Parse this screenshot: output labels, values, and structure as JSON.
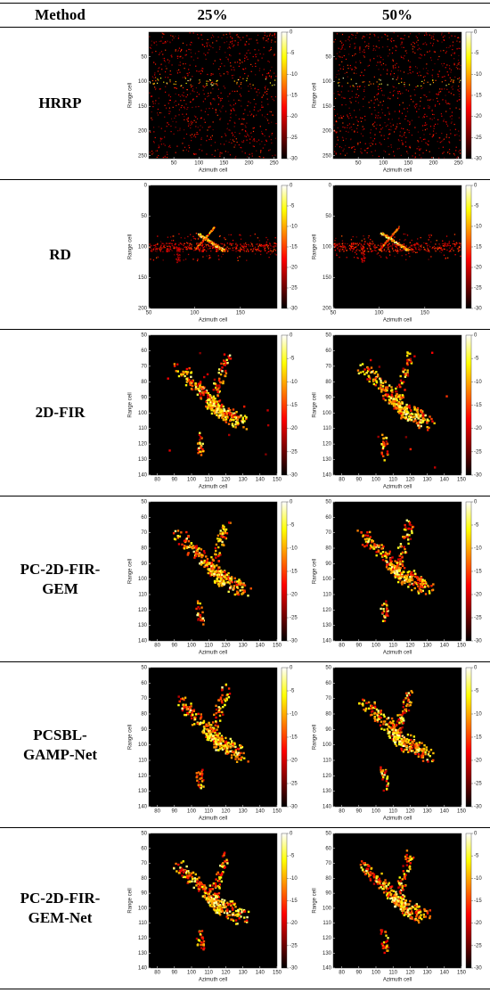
{
  "table": {
    "header": [
      "Method",
      "25%",
      "50%"
    ],
    "rows": [
      {
        "method": "HRRP",
        "panels": [
          {
            "xlabel": "Azimuth cell",
            "ylabel": "Range cell",
            "xlim": [
              0,
              256
            ],
            "ylim": [
              0,
              256
            ],
            "xticks": [
              50,
              100,
              150,
              200,
              250
            ],
            "yticks": [
              50,
              100,
              150,
              200,
              250
            ],
            "clim": [
              -30,
              0
            ],
            "cticks": [
              0,
              -5,
              -10,
              -15,
              -20,
              -25,
              -30
            ]
          },
          {
            "xlabel": "Azimuth cell",
            "ylabel": "Range cell",
            "xlim": [
              0,
              256
            ],
            "ylim": [
              0,
              256
            ],
            "xticks": [
              50,
              100,
              150,
              200,
              250
            ],
            "yticks": [
              50,
              100,
              150,
              200,
              250
            ],
            "clim": [
              -30,
              0
            ],
            "cticks": [
              0,
              -5,
              -10,
              -15,
              -20,
              -25,
              -30
            ]
          }
        ]
      },
      {
        "method": "RD",
        "panels": [
          {
            "xlabel": "Azimuth cell",
            "ylabel": "Range cell",
            "xlim": [
              50,
              190
            ],
            "ylim": [
              0,
              200
            ],
            "xticks": [
              50,
              100,
              150
            ],
            "yticks": [
              0,
              50,
              100,
              150,
              200
            ],
            "clim": [
              -30,
              0
            ],
            "cticks": [
              0,
              -5,
              -10,
              -15,
              -20,
              -25,
              -30
            ]
          },
          {
            "xlabel": "Azimuth cell",
            "ylabel": "Range cell",
            "xlim": [
              50,
              190
            ],
            "ylim": [
              0,
              200
            ],
            "xticks": [
              50,
              100,
              150
            ],
            "yticks": [
              0,
              50,
              100,
              150,
              200
            ],
            "clim": [
              -30,
              0
            ],
            "cticks": [
              0,
              -5,
              -10,
              -15,
              -20,
              -25,
              -30
            ]
          }
        ]
      },
      {
        "method": "2D-FIR",
        "panels": [
          {
            "xlabel": "Azimuth cell",
            "ylabel": "Range cell",
            "xlim": [
              75,
              150
            ],
            "ylim": [
              50,
              140
            ],
            "xticks": [
              80,
              90,
              100,
              110,
              120,
              130,
              140,
              150
            ],
            "yticks": [
              50,
              60,
              70,
              80,
              90,
              100,
              110,
              120,
              130,
              140
            ],
            "clim": [
              -30,
              0
            ],
            "cticks": [
              0,
              -5,
              -10,
              -15,
              -20,
              -25,
              -30
            ]
          },
          {
            "xlabel": "Azimuth cell",
            "ylabel": "Range cell",
            "xlim": [
              75,
              150
            ],
            "ylim": [
              50,
              140
            ],
            "xticks": [
              80,
              90,
              100,
              110,
              120,
              130,
              140,
              150
            ],
            "yticks": [
              50,
              60,
              70,
              80,
              90,
              100,
              110,
              120,
              130,
              140
            ],
            "clim": [
              -30,
              0
            ],
            "cticks": [
              0,
              -5,
              -10,
              -15,
              -20,
              -25,
              -30
            ]
          }
        ]
      },
      {
        "method": "PC-2D-FIR-GEM",
        "panels": [
          {
            "xlabel": "Azimuth cell",
            "ylabel": "Range cell",
            "xlim": [
              75,
              150
            ],
            "ylim": [
              50,
              140
            ],
            "xticks": [
              80,
              90,
              100,
              110,
              120,
              130,
              140,
              150
            ],
            "yticks": [
              50,
              60,
              70,
              80,
              90,
              100,
              110,
              120,
              130,
              140
            ],
            "clim": [
              -30,
              0
            ],
            "cticks": [
              0,
              -5,
              -10,
              -15,
              -20,
              -25,
              -30
            ]
          },
          {
            "xlabel": "Azimuth cell",
            "ylabel": "Range cell",
            "xlim": [
              75,
              150
            ],
            "ylim": [
              50,
              140
            ],
            "xticks": [
              80,
              90,
              100,
              110,
              120,
              130,
              140,
              150
            ],
            "yticks": [
              50,
              60,
              70,
              80,
              90,
              100,
              110,
              120,
              130,
              140
            ],
            "clim": [
              -30,
              0
            ],
            "cticks": [
              0,
              -5,
              -10,
              -15,
              -20,
              -25,
              -30
            ]
          }
        ]
      },
      {
        "method": "PCSBL-GAMP-Net",
        "panels": [
          {
            "xlabel": "Azimuth cell",
            "ylabel": "Range cell",
            "xlim": [
              75,
              150
            ],
            "ylim": [
              50,
              140
            ],
            "xticks": [
              80,
              90,
              100,
              110,
              120,
              130,
              140,
              150
            ],
            "yticks": [
              50,
              60,
              70,
              80,
              90,
              100,
              110,
              120,
              130,
              140
            ],
            "clim": [
              -30,
              0
            ],
            "cticks": [
              0,
              -5,
              -10,
              -15,
              -20,
              -25,
              -30
            ]
          },
          {
            "xlabel": "Azimuth cell",
            "ylabel": "Range cell",
            "xlim": [
              75,
              150
            ],
            "ylim": [
              50,
              140
            ],
            "xticks": [
              80,
              90,
              100,
              110,
              120,
              130,
              140,
              150
            ],
            "yticks": [
              50,
              60,
              70,
              80,
              90,
              100,
              110,
              120,
              130,
              140
            ],
            "clim": [
              -30,
              0
            ],
            "cticks": [
              0,
              -5,
              -10,
              -15,
              -20,
              -25,
              -30
            ]
          }
        ]
      },
      {
        "method": "PC-2D-FIR-GEM-Net",
        "panels": [
          {
            "xlabel": "Azimuth cell",
            "ylabel": "Range cell",
            "xlim": [
              75,
              150
            ],
            "ylim": [
              50,
              140
            ],
            "xticks": [
              80,
              90,
              100,
              110,
              120,
              130,
              140,
              150
            ],
            "yticks": [
              50,
              60,
              70,
              80,
              90,
              100,
              110,
              120,
              130,
              140
            ],
            "clim": [
              -30,
              0
            ],
            "cticks": [
              0,
              -5,
              -10,
              -15,
              -20,
              -25,
              -30
            ]
          },
          {
            "xlabel": "Azimuth cell",
            "ylabel": "Range cell",
            "xlim": [
              75,
              150
            ],
            "ylim": [
              50,
              140
            ],
            "xticks": [
              80,
              90,
              100,
              110,
              120,
              130,
              140,
              150
            ],
            "yticks": [
              50,
              60,
              70,
              80,
              90,
              100,
              110,
              120,
              130,
              140
            ],
            "clim": [
              -30,
              0
            ],
            "cticks": [
              0,
              -5,
              -10,
              -15,
              -20,
              -25,
              -30
            ]
          }
        ]
      }
    ]
  }
}
